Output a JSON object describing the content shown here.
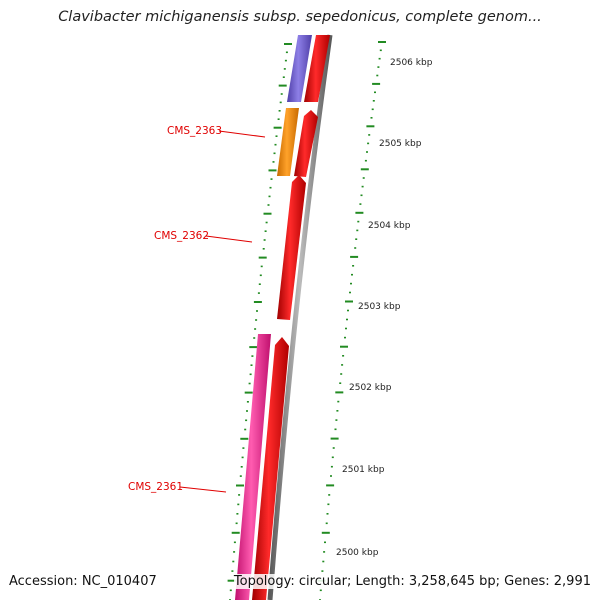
{
  "title": "Clavibacter michiganensis subsp. sepedonicus, complete genom...",
  "footer": {
    "accession": "Accession: NC_010407",
    "summary": "Topology: circular; Length: 3,258,645 bp; Genes: 2,991"
  },
  "ruler": {
    "unit": "kbp",
    "labels": [
      "2506 kbp",
      "2505 kbp",
      "2504 kbp",
      "2503 kbp",
      "2502 kbp",
      "2501 kbp",
      "2500 kbp"
    ]
  },
  "genes": [
    {
      "name": "CMS_2363",
      "color": "#ff8c00"
    },
    {
      "name": "CMS_2362",
      "color": "#ee0000"
    },
    {
      "name": "CMS_2361",
      "color": "#ff1493"
    }
  ],
  "colors": {
    "cds_track": "#ee0000",
    "upper_feature": "#6a5acd",
    "backbone": "#808080",
    "tick": "#228b22",
    "label": "#e00000"
  }
}
